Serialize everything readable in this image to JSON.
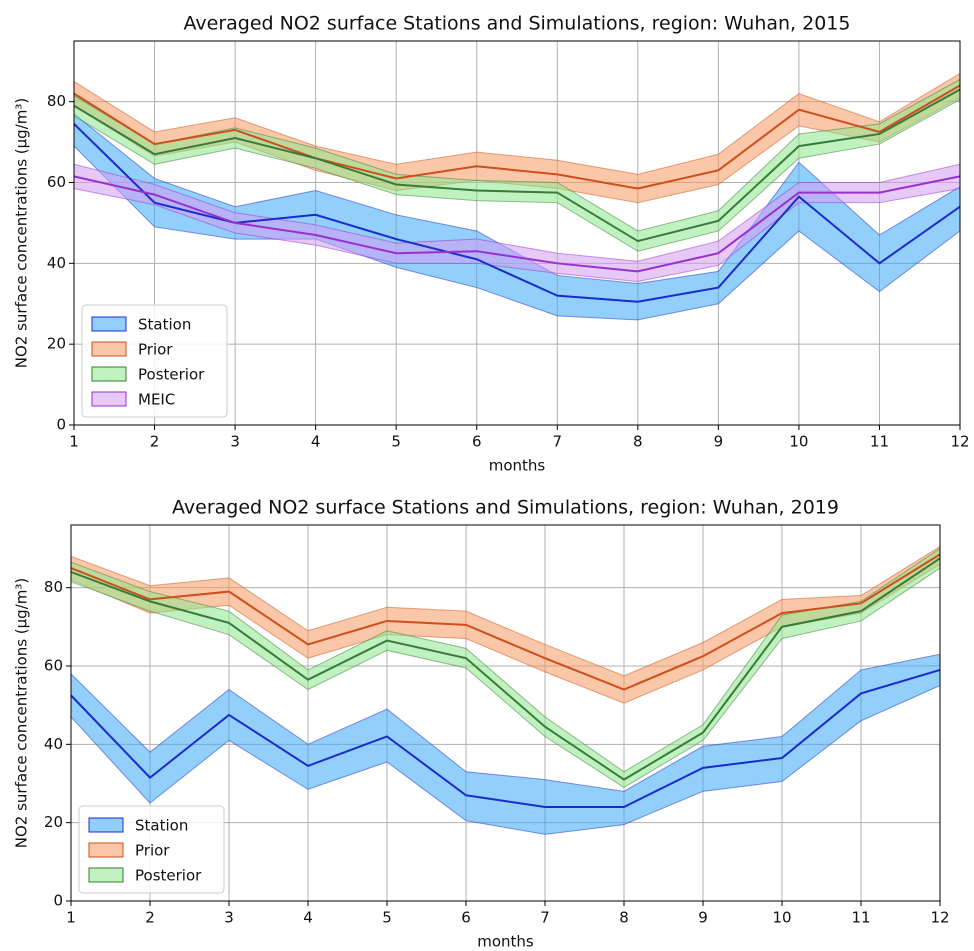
{
  "chart_data": [
    {
      "type": "line",
      "title": "Averaged NO2 surface Stations and Simulations, region: Wuhan, 2015",
      "x_label": "months",
      "y_label": "NO2 surface concentrations (μg/m³)",
      "x": [
        1,
        2,
        3,
        4,
        5,
        6,
        7,
        8,
        9,
        10,
        11,
        12
      ],
      "xlim": [
        1,
        12
      ],
      "xticks": [
        1,
        2,
        3,
        4,
        5,
        6,
        7,
        8,
        9,
        10,
        11,
        12
      ],
      "ylim": [
        0,
        95
      ],
      "yticks": [
        0,
        20,
        40,
        60,
        80
      ],
      "grid": true,
      "legend": "lower left",
      "series": [
        {
          "name": "Station",
          "color": "#1a2ccc",
          "band_color": "#3aa8f8",
          "values": [
            74.5,
            55,
            50,
            52,
            46,
            41,
            32,
            30.5,
            34,
            56.5,
            40,
            54
          ],
          "upper": [
            77,
            61,
            54,
            58,
            52,
            48,
            37,
            35,
            38,
            65,
            47,
            59
          ],
          "lower": [
            69,
            49,
            46,
            46,
            39,
            34,
            27,
            26,
            30,
            48,
            33,
            48
          ]
        },
        {
          "name": "Prior",
          "color": "#cc4f1c",
          "band_color": "#f59a60",
          "values": [
            82,
            69.5,
            73,
            66,
            61,
            64,
            62,
            58.5,
            63,
            78,
            72.5,
            84
          ],
          "upper": [
            85,
            72.5,
            76,
            69,
            64.5,
            67.5,
            65.5,
            62,
            67,
            82,
            75,
            87
          ],
          "lower": [
            79,
            66.5,
            70,
            63,
            58,
            60.5,
            58.5,
            55,
            59.5,
            74,
            70,
            81
          ]
        },
        {
          "name": "Posterior",
          "color": "#3a7a3a",
          "band_color": "#8ce88c",
          "values": [
            79,
            67,
            71,
            66,
            59.5,
            58,
            57.5,
            45.5,
            50.5,
            69,
            72,
            83
          ],
          "upper": [
            81.5,
            69.5,
            73.5,
            68.5,
            62,
            60.5,
            60,
            48,
            53,
            72,
            74.5,
            85.5
          ],
          "lower": [
            76.5,
            64.5,
            68.5,
            63.5,
            57,
            55.5,
            55,
            43,
            48,
            66,
            69.5,
            80.5
          ]
        },
        {
          "name": "MEIC",
          "color": "#9a2fd0",
          "band_color": "#d49cf2",
          "values": [
            61.5,
            57,
            50,
            47,
            42.5,
            43,
            40,
            38,
            42.5,
            57.5,
            57.5,
            61.5
          ],
          "upper": [
            64.5,
            59.5,
            52.5,
            49.5,
            45,
            46,
            42.5,
            40.5,
            45.5,
            60,
            60,
            64.5
          ],
          "lower": [
            58.5,
            54.5,
            47.5,
            44.5,
            40,
            40,
            37.5,
            35.5,
            39.5,
            55,
            55,
            58.5
          ]
        }
      ]
    },
    {
      "type": "line",
      "title": "Averaged NO2 surface Stations and Simulations, region: Wuhan, 2019",
      "x_label": "months",
      "y_label": "NO2 surface concentrations (μg/m³)",
      "x": [
        1,
        2,
        3,
        4,
        5,
        6,
        7,
        8,
        9,
        10,
        11,
        12
      ],
      "xlim": [
        1,
        12
      ],
      "xticks": [
        1,
        2,
        3,
        4,
        5,
        6,
        7,
        8,
        9,
        10,
        11,
        12
      ],
      "ylim": [
        0,
        96
      ],
      "yticks": [
        0,
        20,
        40,
        60,
        80
      ],
      "grid": true,
      "legend": "lower left",
      "series": [
        {
          "name": "Station",
          "color": "#1a2ccc",
          "band_color": "#3aa8f8",
          "values": [
            52.5,
            31.5,
            47.5,
            34.5,
            42,
            27,
            24,
            24,
            34,
            36.5,
            53,
            59
          ],
          "upper": [
            58,
            38,
            54,
            40,
            49,
            33,
            31,
            28,
            39.5,
            42,
            59,
            63
          ],
          "lower": [
            47,
            25,
            41,
            28.5,
            35.5,
            20.5,
            17,
            19.5,
            28,
            30.5,
            46,
            55
          ]
        },
        {
          "name": "Prior",
          "color": "#cc4f1c",
          "band_color": "#f59a60",
          "values": [
            85,
            77,
            79,
            65.5,
            71.5,
            70.5,
            62,
            54,
            62.5,
            73.5,
            76,
            88.5
          ],
          "upper": [
            88,
            80.5,
            82.5,
            69,
            75,
            74,
            65.5,
            57.5,
            66,
            77,
            78,
            90.5
          ],
          "lower": [
            82,
            73.5,
            75.5,
            62,
            68,
            67,
            58.5,
            50.5,
            59,
            70,
            73.5,
            86
          ]
        },
        {
          "name": "Posterior",
          "color": "#3a7a3a",
          "band_color": "#8ce88c",
          "values": [
            84,
            76.5,
            71,
            56.5,
            66.5,
            62,
            44.5,
            31,
            43,
            70,
            74,
            87.5
          ],
          "upper": [
            86.5,
            79,
            74,
            59,
            69,
            64.5,
            47,
            33,
            45,
            73,
            76.5,
            90
          ],
          "lower": [
            81.5,
            74,
            68,
            54,
            64,
            59.5,
            42,
            29,
            41,
            67,
            71.5,
            85
          ]
        }
      ]
    }
  ]
}
